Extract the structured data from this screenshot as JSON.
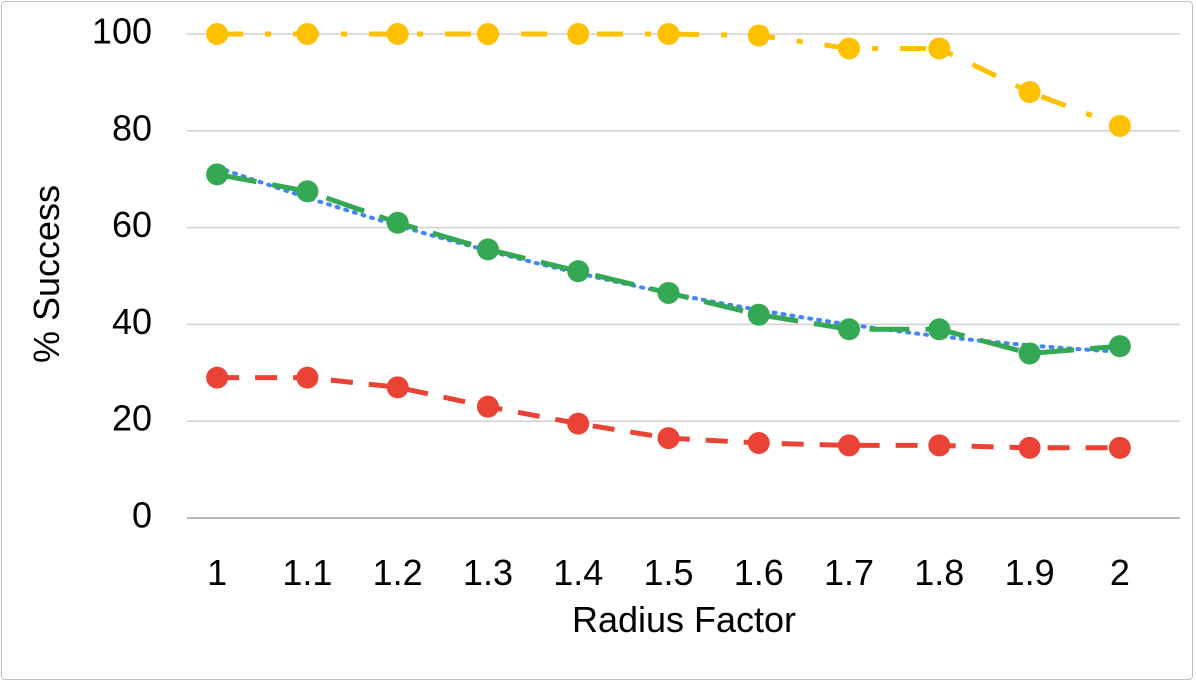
{
  "chart_data": {
    "type": "line",
    "title": "",
    "xlabel": "Radius Factor",
    "ylabel": "% Success",
    "categories": [
      "1",
      "1.1",
      "1.2",
      "1.3",
      "1.4",
      "1.5",
      "1.6",
      "1.7",
      "1.8",
      "1.9",
      "2"
    ],
    "ylim": [
      0,
      100
    ],
    "yticks": [
      "0",
      "20",
      "40",
      "60",
      "80",
      "100"
    ],
    "grid": true,
    "legend": "none",
    "series": [
      {
        "color": "#FFC000",
        "dash": "dash-dot",
        "values": [
          100,
          100,
          100,
          100,
          100,
          100,
          99.7,
          97,
          97,
          88,
          81
        ]
      },
      {
        "color": "#34A853",
        "dash": "long-dash",
        "values": [
          71,
          67.5,
          61,
          55.5,
          51,
          46.5,
          42,
          39,
          39,
          34,
          35.5
        ]
      },
      {
        "color": "#EA4335",
        "dash": "dash",
        "values": [
          29,
          29,
          27,
          23,
          19.5,
          16.5,
          15.5,
          15,
          15,
          14.5,
          14.5
        ]
      }
    ],
    "trendline": {
      "color": "#4285F4",
      "style": "dotted",
      "type": "polynomial",
      "series_index": 1
    }
  }
}
